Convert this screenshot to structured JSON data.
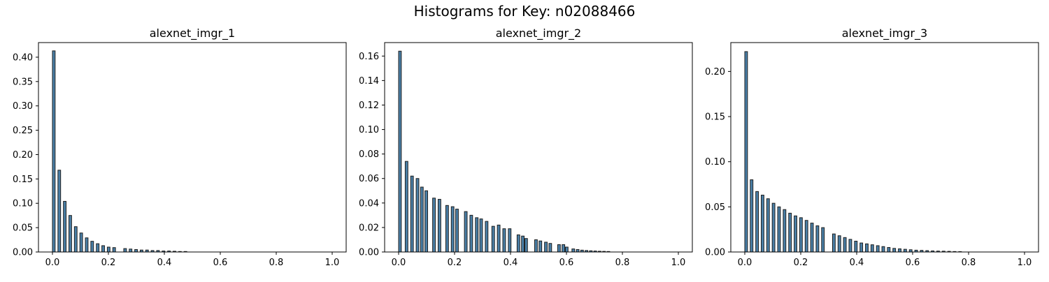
{
  "figure": {
    "suptitle": "Histograms for Key: n02088466"
  },
  "style": {
    "bar_fill": "#4a80a8",
    "bar_edge": "#1e1e1e",
    "axis_color": "#000000"
  },
  "chart_data": [
    {
      "type": "bar",
      "title": "alexnet_imgr_1",
      "xlim": [
        -0.05,
        1.05
      ],
      "ylim": [
        0,
        0.43
      ],
      "xticks": [
        "0.0",
        "0.2",
        "0.4",
        "0.6",
        "0.8",
        "1.0"
      ],
      "xtick_values": [
        0.0,
        0.2,
        0.4,
        0.6,
        0.8,
        1.0
      ],
      "yticks": [
        "0.00",
        "0.05",
        "0.10",
        "0.15",
        "0.20",
        "0.25",
        "0.30",
        "0.35",
        "0.40"
      ],
      "ytick_values": [
        0.0,
        0.05,
        0.1,
        0.15,
        0.2,
        0.25,
        0.3,
        0.35,
        0.4
      ],
      "bin_width": 0.0096,
      "x": [
        0.0,
        0.0196,
        0.0392,
        0.0588,
        0.0784,
        0.098,
        0.1176,
        0.1372,
        0.1569,
        0.1765,
        0.1961,
        0.2157,
        0.2549,
        0.2745,
        0.2941,
        0.3137,
        0.3333,
        0.3529,
        0.3725,
        0.3922,
        0.4118,
        0.4314,
        0.451,
        0.4706
      ],
      "values": [
        0.413,
        0.168,
        0.104,
        0.075,
        0.052,
        0.039,
        0.029,
        0.022,
        0.017,
        0.013,
        0.01,
        0.009,
        0.007,
        0.006,
        0.005,
        0.004,
        0.004,
        0.003,
        0.003,
        0.002,
        0.002,
        0.0015,
        0.001,
        0.001
      ]
    },
    {
      "type": "bar",
      "title": "alexnet_imgr_2",
      "xlim": [
        -0.05,
        1.05
      ],
      "ylim": [
        0,
        0.171
      ],
      "xticks": [
        "0.0",
        "0.2",
        "0.4",
        "0.6",
        "0.8",
        "1.0"
      ],
      "xtick_values": [
        0.0,
        0.2,
        0.4,
        0.6,
        0.8,
        1.0
      ],
      "yticks": [
        "0.00",
        "0.02",
        "0.04",
        "0.06",
        "0.08",
        "0.10",
        "0.12",
        "0.14",
        "0.16"
      ],
      "ytick_values": [
        0.0,
        0.02,
        0.04,
        0.06,
        0.08,
        0.1,
        0.12,
        0.14,
        0.16
      ],
      "bin_width": 0.0096,
      "x": [
        0.0,
        0.0235,
        0.0431,
        0.0627,
        0.0784,
        0.0941,
        0.1216,
        0.1412,
        0.1686,
        0.1882,
        0.2039,
        0.2353,
        0.2549,
        0.2745,
        0.2902,
        0.3098,
        0.3333,
        0.3529,
        0.3725,
        0.3922,
        0.4235,
        0.4392,
        0.451,
        0.4863,
        0.502,
        0.5216,
        0.5373,
        0.5686,
        0.5843,
        0.5961,
        0.6196,
        0.6353,
        0.651,
        0.6667,
        0.6824,
        0.698,
        0.7137,
        0.7294,
        0.7451
      ],
      "values": [
        0.164,
        0.074,
        0.062,
        0.06,
        0.053,
        0.05,
        0.044,
        0.043,
        0.038,
        0.037,
        0.035,
        0.033,
        0.03,
        0.028,
        0.027,
        0.025,
        0.021,
        0.022,
        0.019,
        0.019,
        0.014,
        0.013,
        0.011,
        0.01,
        0.009,
        0.008,
        0.007,
        0.006,
        0.006,
        0.004,
        0.0025,
        0.002,
        0.0015,
        0.0012,
        0.001,
        0.0008,
        0.0006,
        0.0005,
        0.0004
      ]
    },
    {
      "type": "bar",
      "title": "alexnet_imgr_3",
      "xlim": [
        -0.05,
        1.05
      ],
      "ylim": [
        0,
        0.232
      ],
      "xticks": [
        "0.0",
        "0.2",
        "0.4",
        "0.6",
        "0.8",
        "1.0"
      ],
      "xtick_values": [
        0.0,
        0.2,
        0.4,
        0.6,
        0.8,
        1.0
      ],
      "yticks": [
        "0.00",
        "0.05",
        "0.10",
        "0.15",
        "0.20"
      ],
      "ytick_values": [
        0.0,
        0.05,
        0.1,
        0.15,
        0.2
      ],
      "bin_width": 0.0096,
      "x": [
        0.0,
        0.0196,
        0.0392,
        0.0588,
        0.0784,
        0.098,
        0.1176,
        0.1373,
        0.1569,
        0.1765,
        0.1961,
        0.2157,
        0.2353,
        0.2549,
        0.2745,
        0.3137,
        0.3333,
        0.3529,
        0.3725,
        0.3922,
        0.4118,
        0.4314,
        0.451,
        0.4706,
        0.4902,
        0.5098,
        0.5294,
        0.549,
        0.5686,
        0.5882,
        0.6078,
        0.6275,
        0.6471,
        0.6667,
        0.6863,
        0.7059,
        0.7255,
        0.7451,
        0.7647
      ],
      "values": [
        0.222,
        0.08,
        0.067,
        0.063,
        0.059,
        0.054,
        0.05,
        0.047,
        0.043,
        0.04,
        0.038,
        0.035,
        0.032,
        0.029,
        0.027,
        0.02,
        0.018,
        0.016,
        0.014,
        0.012,
        0.01,
        0.009,
        0.008,
        0.007,
        0.006,
        0.005,
        0.004,
        0.0035,
        0.003,
        0.0025,
        0.002,
        0.0018,
        0.0015,
        0.0012,
        0.001,
        0.0009,
        0.0007,
        0.0005,
        0.0004
      ]
    }
  ]
}
